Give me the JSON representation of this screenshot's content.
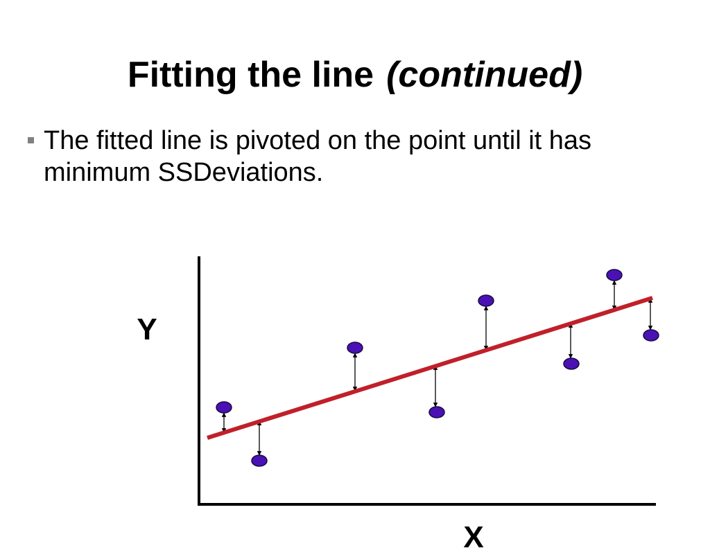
{
  "header": {
    "title": "Fitting the line",
    "title_emphasis": "(continued)"
  },
  "bullet": {
    "lines": [
      "The fitted line is pivoted on the point until it has",
      "minimum SSDeviations."
    ]
  },
  "diagram": {
    "y_label": "Y",
    "x_label": "X"
  }
}
